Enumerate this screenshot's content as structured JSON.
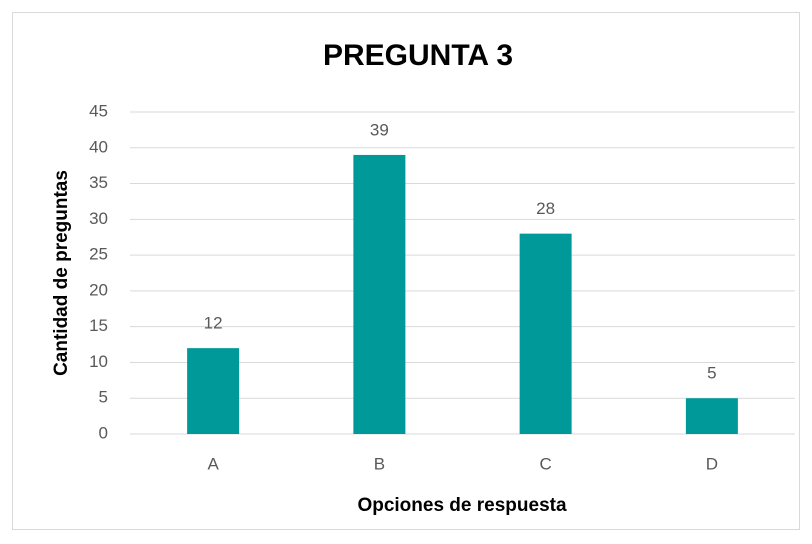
{
  "chart_data": {
    "type": "bar",
    "title": "PREGUNTA 3",
    "x_label": "Opciones de respuesta",
    "y_label": "Cantidad de preguntas",
    "categories": [
      "A",
      "B",
      "C",
      "D"
    ],
    "values": [
      12,
      39,
      28,
      5
    ],
    "color": "#009999",
    "ylim": [
      0,
      45
    ],
    "yticks": [
      0,
      5,
      10,
      15,
      20,
      25,
      30,
      35,
      40,
      45
    ],
    "grid": true
  }
}
